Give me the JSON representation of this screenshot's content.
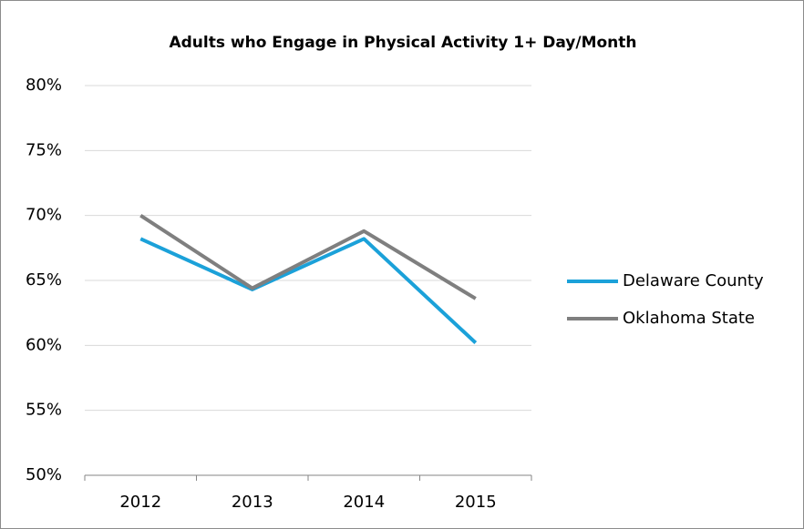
{
  "chart_data": {
    "type": "line",
    "title": "Adults who Engage in Physical Activity 1+ Day/Month",
    "categories": [
      "2012",
      "2013",
      "2014",
      "2015"
    ],
    "series": [
      {
        "name": "Delaware County",
        "color": "#1ba1d9",
        "values": [
          68.2,
          64.3,
          68.2,
          60.2
        ]
      },
      {
        "name": "Oklahoma State",
        "color": "#7f7f7f",
        "values": [
          70.0,
          64.4,
          68.8,
          63.6
        ]
      }
    ],
    "ylim": [
      50,
      80
    ],
    "yticks": [
      {
        "value": 50,
        "label": "50%"
      },
      {
        "value": 55,
        "label": "55%"
      },
      {
        "value": 60,
        "label": "60%"
      },
      {
        "value": 65,
        "label": "65%"
      },
      {
        "value": 70,
        "label": "70%"
      },
      {
        "value": 75,
        "label": "75%"
      },
      {
        "value": 80,
        "label": "80%"
      }
    ],
    "grid": true,
    "legend": "right"
  }
}
